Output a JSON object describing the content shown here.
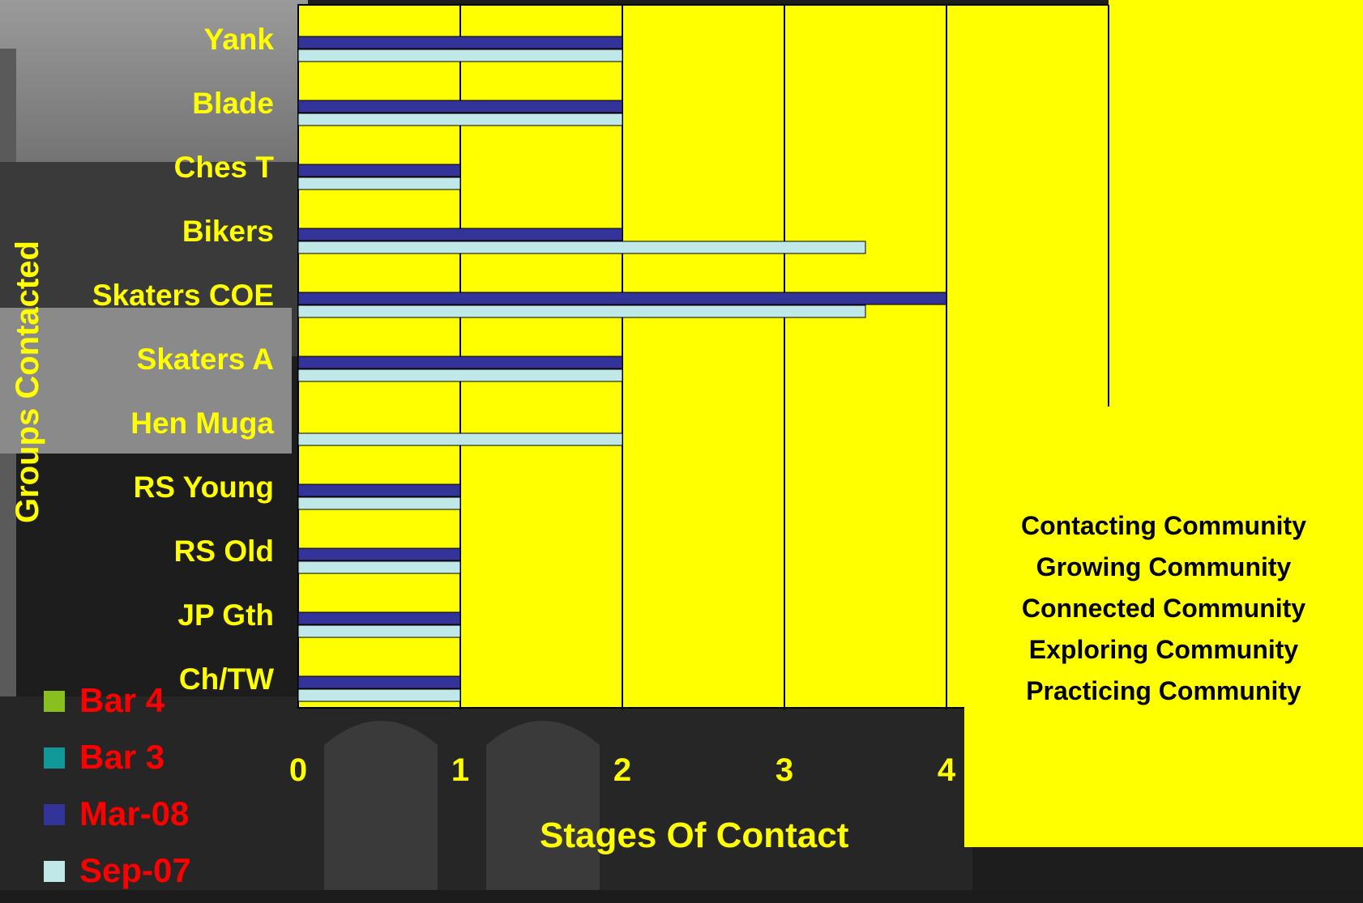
{
  "chart_data": {
    "type": "bar",
    "orientation": "horizontal",
    "categories": [
      "Yank",
      "Blade",
      "Ches T",
      "Bikers",
      "Skaters COE",
      "Skaters A",
      "Hen Muga",
      "RS Young",
      "RS Old",
      "JP Gth",
      "Ch/TW"
    ],
    "series": [
      {
        "name": "Mar-08",
        "values": [
          2,
          2,
          1,
          2,
          4,
          2,
          0,
          1,
          1,
          1,
          1
        ]
      },
      {
        "name": "Sep-07",
        "values": [
          2,
          2,
          1,
          3.5,
          3.5,
          2,
          2,
          1,
          1,
          1,
          1
        ]
      }
    ],
    "xlim": [
      0,
      5
    ],
    "x_ticks": [
      "0",
      "1",
      "2",
      "3",
      "4"
    ],
    "xlabel": "Stages Of Contact",
    "ylabel": "Groups Contacted",
    "grid": "vertical",
    "colors": {
      "plot_bg": "#ffff00",
      "Mar-08": "#333399",
      "Sep-07": "#c0e8e8",
      "labels": "#ffff00"
    }
  },
  "legend": [
    {
      "label": "Bar 4",
      "color": "#88c020"
    },
    {
      "label": "Bar 3",
      "color": "#119999"
    },
    {
      "label": "Mar-08",
      "color": "#333399"
    },
    {
      "label": "Sep-07",
      "color": "#c0e8e8"
    }
  ],
  "stages": [
    "Contacting Community",
    "Growing Community",
    "Connected Community",
    "Exploring Community",
    "Practicing Community"
  ]
}
